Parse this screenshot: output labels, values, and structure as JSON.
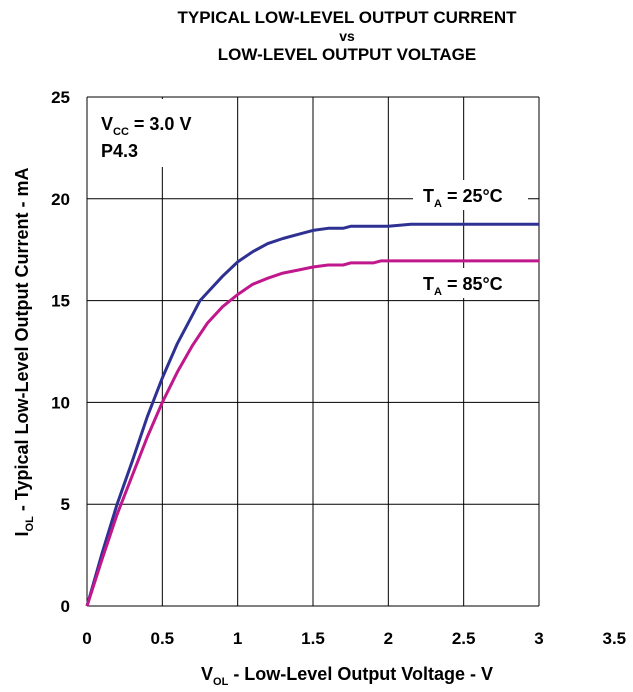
{
  "chart_data": {
    "type": "line",
    "title": {
      "line1": "TYPICAL LOW-LEVEL OUTPUT CURRENT",
      "line2": "vs",
      "line3": "LOW-LEVEL OUTPUT VOLTAGE"
    },
    "xlabel": {
      "main": "V",
      "sub": "OL",
      "rest": " - Low-Level Output Voltage - V"
    },
    "ylabel": {
      "main": "I",
      "sub": "OL",
      "rest": " - Typical Low-Level Output Current - mA"
    },
    "xlim": [
      0,
      3.5
    ],
    "ylim": [
      0,
      25
    ],
    "x_ticks": [
      "0",
      "0.5",
      "1",
      "1.5",
      "2",
      "2.5",
      "3",
      "3.5"
    ],
    "y_ticks": [
      "0",
      "5",
      "10",
      "15",
      "20",
      "25"
    ],
    "grid": true,
    "annotations": {
      "vcc": {
        "main": "V",
        "sub": "CC",
        "rest": " = 3.0 V"
      },
      "pin": "P4.3",
      "t25": {
        "main": "T",
        "sub": "A",
        "rest": " = 25°C"
      },
      "t85": {
        "main": "T",
        "sub": "A",
        "rest": " = 85°C"
      }
    },
    "series": [
      {
        "color": "#2e3192",
        "x": [
          0,
          0.1,
          0.2,
          0.3,
          0.4,
          0.5,
          0.6,
          0.7,
          0.75,
          0.8,
          0.9,
          1.0,
          1.1,
          1.2,
          1.3,
          1.4,
          1.5,
          1.6,
          1.7,
          1.75,
          2.0,
          2.15,
          2.5,
          3.0
        ],
        "y": [
          0,
          2.6,
          5.0,
          7.1,
          9.3,
          11.2,
          12.9,
          14.3,
          15.0,
          15.4,
          16.2,
          16.9,
          17.4,
          17.8,
          18.05,
          18.25,
          18.45,
          18.55,
          18.55,
          18.65,
          18.65,
          18.75,
          18.75,
          18.75
        ]
      },
      {
        "color": "#c0188c",
        "x": [
          0,
          0.1,
          0.2,
          0.3,
          0.4,
          0.5,
          0.6,
          0.7,
          0.8,
          0.9,
          1.0,
          1.1,
          1.2,
          1.3,
          1.4,
          1.5,
          1.6,
          1.7,
          1.75,
          1.9,
          1.95,
          2.5,
          3.0
        ],
        "y": [
          0,
          2.3,
          4.5,
          6.4,
          8.3,
          10.0,
          11.5,
          12.8,
          13.9,
          14.7,
          15.3,
          15.8,
          16.1,
          16.35,
          16.5,
          16.65,
          16.75,
          16.75,
          16.85,
          16.85,
          16.95,
          16.95,
          16.95
        ]
      }
    ]
  }
}
